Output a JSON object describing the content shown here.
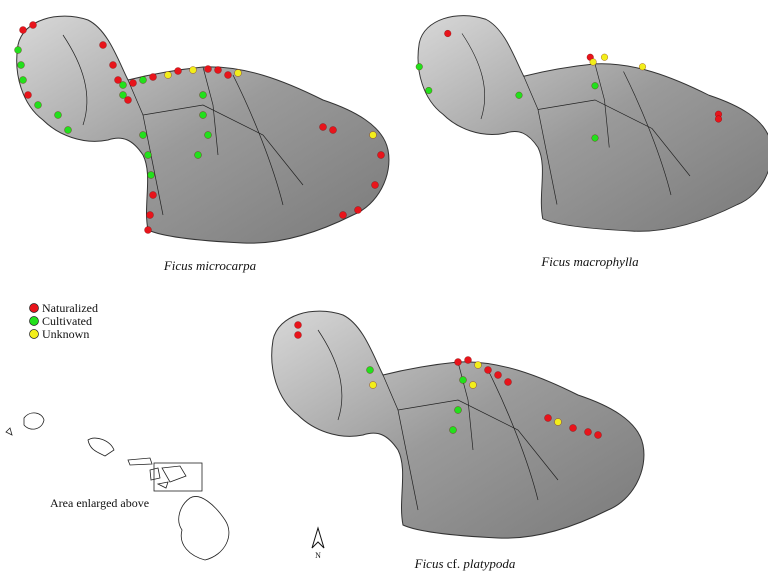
{
  "maps": [
    {
      "caption": "Ficus microcarpa"
    },
    {
      "caption": "Ficus macrophylla"
    },
    {
      "caption": {
        "genus": "Ficus",
        "qualifier": "cf.",
        "epithet": "platypoda"
      }
    }
  ],
  "legend": [
    {
      "name": "Naturalized",
      "color": "#e8141b"
    },
    {
      "name": "Cultivated",
      "color": "#22e01c"
    },
    {
      "name": "Unknown",
      "color": "#f2ee1a"
    }
  ],
  "inset_label": "Area enlarged above",
  "north_label": "N"
}
